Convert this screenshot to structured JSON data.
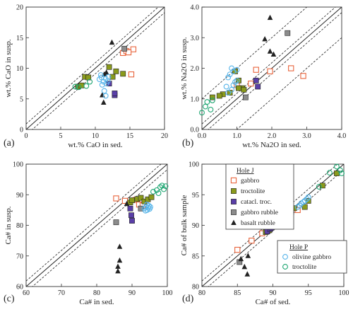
{
  "colors": {
    "gabbro": "#e8643c",
    "troctolite": "#8a9a1c",
    "catacl_troc": "#5a3fa8",
    "gabbro_rubble": "#8c8c8c",
    "basalt_rubble": "#222222",
    "olivine_gabbro": "#56b4e9",
    "troctolite_p": "#1ea672"
  },
  "panels": [
    {
      "label": "(a)"
    },
    {
      "label": "(b)"
    },
    {
      "label": "(c)"
    },
    {
      "label": "(d)"
    }
  ],
  "legend_j": {
    "title": "Hole J",
    "items": [
      "gabbro",
      "troctolite",
      "catacl. troc.",
      "gabbro rubble",
      "basalt rubble"
    ]
  },
  "legend_p": {
    "title": "Hole P",
    "items": [
      "olivine gabbro",
      "troctolite"
    ]
  },
  "chart_data": [
    {
      "type": "scatter",
      "xlabel": "wt.% CaO in sed.",
      "ylabel": "wt.% CaO in susp.",
      "xlim": [
        0,
        20
      ],
      "ylim": [
        0,
        20
      ],
      "xticks": [
        "0",
        "5",
        "10",
        "15",
        "20"
      ],
      "yticks": [
        "0",
        "5",
        "10",
        "15",
        "20"
      ],
      "reference_lines": "1:1 line with dashed bounds",
      "series": [
        {
          "name": "gabbro",
          "marker": "square-open",
          "points": [
            [
              14,
              12.5
            ],
            [
              14.5,
              12.8
            ],
            [
              15.5,
              13.1
            ],
            [
              14.8,
              12.6
            ],
            [
              15.2,
              9.0
            ]
          ]
        },
        {
          "name": "troctolite",
          "marker": "square-filled",
          "points": [
            [
              7.5,
              7.0
            ],
            [
              8.0,
              7.2
            ],
            [
              8.5,
              8.6
            ],
            [
              9.0,
              8.5
            ],
            [
              12.0,
              10.2
            ],
            [
              13.0,
              9.5
            ],
            [
              14.0,
              9.1
            ],
            [
              12.5,
              8.6
            ]
          ]
        },
        {
          "name": "catacl. troc.",
          "marker": "square-filled",
          "points": [
            [
              12.0,
              7.5
            ],
            [
              12.8,
              5.6
            ],
            [
              12.8,
              5.9
            ]
          ]
        },
        {
          "name": "gabbro rubble",
          "marker": "square-filled",
          "points": [
            [
              14.2,
              13.2
            ]
          ]
        },
        {
          "name": "basalt rubble",
          "marker": "triangle",
          "points": [
            [
              11.0,
              5.6
            ],
            [
              11.2,
              4.4
            ],
            [
              11.3,
              9.0
            ],
            [
              11.6,
              9.3
            ],
            [
              12.4,
              14.2
            ]
          ]
        },
        {
          "name": "olivine gabbro",
          "marker": "circle-open",
          "points": [
            [
              10.6,
              8.2
            ],
            [
              10.9,
              8.5
            ],
            [
              11.2,
              7.8
            ],
            [
              11.5,
              8.3
            ],
            [
              11.6,
              7.5
            ],
            [
              11.9,
              8.6
            ],
            [
              11.0,
              7.3
            ],
            [
              11.3,
              6.3
            ],
            [
              10.8,
              8.9
            ],
            [
              11.8,
              7.9
            ],
            [
              11.5,
              5.5
            ]
          ]
        },
        {
          "name": "troctolite",
          "marker": "circle-open",
          "points": [
            [
              7.1,
              7.0
            ],
            [
              7.6,
              6.9
            ],
            [
              8.7,
              7.1
            ],
            [
              9.2,
              7.8
            ]
          ]
        }
      ]
    },
    {
      "type": "scatter",
      "xlabel": "wt.% Na2O in sed.",
      "ylabel": "wt.% Na2O in susp.",
      "xlim": [
        0,
        4.0
      ],
      "ylim": [
        0,
        4.0
      ],
      "xticks": [
        "0.0",
        "1.0",
        "2.0",
        "3.0",
        "4.0"
      ],
      "yticks": [
        "0.0",
        "1.0",
        "2.0",
        "3.0",
        "4.0"
      ],
      "reference_lines": "1:1 line with dashed bounds",
      "series": [
        {
          "name": "gabbro",
          "marker": "square-open",
          "points": [
            [
              1.55,
              1.95
            ],
            [
              1.95,
              1.9
            ],
            [
              2.55,
              2.0
            ],
            [
              2.9,
              1.75
            ],
            [
              1.4,
              1.5
            ],
            [
              1.0,
              1.45
            ]
          ]
        },
        {
          "name": "troctolite",
          "marker": "square-filled",
          "points": [
            [
              0.6,
              1.15
            ],
            [
              0.3,
              1.05
            ],
            [
              0.5,
              1.1
            ],
            [
              0.8,
              1.2
            ],
            [
              1.15,
              1.35
            ],
            [
              1.2,
              1.3
            ],
            [
              1.05,
              1.6
            ],
            [
              0.95,
              1.9
            ],
            [
              1.05,
              1.35
            ]
          ]
        },
        {
          "name": "catacl. troc.",
          "marker": "square-filled",
          "points": [
            [
              1.6,
              1.4
            ],
            [
              1.55,
              1.6
            ]
          ]
        },
        {
          "name": "gabbro rubble",
          "marker": "square-filled",
          "points": [
            [
              2.45,
              3.15
            ],
            [
              1.25,
              1.05
            ]
          ]
        },
        {
          "name": "basalt rubble",
          "marker": "triangle",
          "points": [
            [
              1.95,
              3.65
            ],
            [
              1.95,
              2.55
            ],
            [
              2.05,
              2.45
            ],
            [
              1.8,
              2.95
            ]
          ]
        },
        {
          "name": "olivine gabbro",
          "marker": "circle-open",
          "points": [
            [
              0.7,
              1.4
            ],
            [
              0.75,
              1.7
            ],
            [
              0.8,
              1.8
            ],
            [
              0.85,
              2.0
            ],
            [
              0.9,
              1.9
            ],
            [
              0.95,
              1.55
            ],
            [
              0.75,
              1.2
            ],
            [
              0.85,
              1.3
            ],
            [
              0.9,
              1.45
            ],
            [
              1.0,
              1.6
            ],
            [
              1.0,
              1.95
            ]
          ]
        },
        {
          "name": "troctolite",
          "marker": "circle-open",
          "points": [
            [
              0.0,
              0.55
            ],
            [
              0.1,
              0.75
            ],
            [
              0.15,
              0.9
            ],
            [
              0.3,
              0.95
            ],
            [
              0.25,
              0.65
            ]
          ]
        }
      ]
    },
    {
      "type": "scatter",
      "xlabel": "Ca# in sed.",
      "ylabel": "Ca# in susp.",
      "xlim": [
        60,
        100
      ],
      "ylim": [
        60,
        100
      ],
      "xticks": [
        "60",
        "70",
        "80",
        "90",
        "100"
      ],
      "yticks": [
        "60",
        "70",
        "80",
        "90",
        "100"
      ],
      "reference_lines": "1:1 line with dashed bounds",
      "series": [
        {
          "name": "gabbro",
          "marker": "square-open",
          "points": [
            [
              85.5,
              88.8
            ],
            [
              88.0,
              88.0
            ],
            [
              91.0,
              88.3
            ],
            [
              92.0,
              86.8
            ],
            [
              93.0,
              86.5
            ]
          ]
        },
        {
          "name": "troctolite",
          "marker": "square-filled",
          "points": [
            [
              89.5,
              87.5
            ],
            [
              90.0,
              88.2
            ],
            [
              91.5,
              88.6
            ],
            [
              92.5,
              89.0
            ],
            [
              93.5,
              87.8
            ],
            [
              94.5,
              88.5
            ],
            [
              95.5,
              89.2
            ]
          ]
        },
        {
          "name": "catacl. troc.",
          "marker": "square-filled",
          "points": [
            [
              89.8,
              83.3
            ],
            [
              90.0,
              81.5
            ],
            [
              89.5,
              85.5
            ]
          ]
        },
        {
          "name": "gabbro rubble",
          "marker": "square-filled",
          "points": [
            [
              85.5,
              81.0
            ],
            [
              92.5,
              85.5
            ]
          ]
        },
        {
          "name": "basalt rubble",
          "marker": "triangle",
          "points": [
            [
              86.5,
              73.0
            ],
            [
              86.5,
              68.5
            ],
            [
              86.0,
              66.5
            ],
            [
              86.0,
              65.0
            ],
            [
              88.5,
              87.0
            ]
          ]
        },
        {
          "name": "olivine gabbro",
          "marker": "circle-open",
          "points": [
            [
              93.5,
              85.5
            ],
            [
              94.0,
              86.0
            ],
            [
              94.3,
              85.0
            ],
            [
              94.6,
              85.8
            ],
            [
              94.8,
              86.4
            ],
            [
              95.0,
              85.4
            ],
            [
              94.2,
              86.8
            ],
            [
              93.8,
              84.8
            ],
            [
              95.2,
              86.0
            ]
          ]
        },
        {
          "name": "troctolite",
          "marker": "circle-open",
          "points": [
            [
              96.0,
              91.0
            ],
            [
              97.0,
              91.5
            ],
            [
              98.0,
              92.5
            ],
            [
              98.5,
              93.0
            ],
            [
              99.0,
              91.8
            ],
            [
              99.5,
              92.8
            ],
            [
              97.5,
              90.5
            ]
          ]
        }
      ]
    },
    {
      "type": "scatter",
      "xlabel": "Ca# of sed.",
      "ylabel": "Ca# of bulk sample",
      "xlim": [
        80,
        100
      ],
      "ylim": [
        80,
        100
      ],
      "xticks": [
        "80",
        "85",
        "90",
        "95",
        "100"
      ],
      "yticks": [
        "80",
        "85",
        "90",
        "95",
        "100"
      ],
      "reference_lines": "1:1 line with dashed bounds",
      "series": [
        {
          "name": "gabbro",
          "marker": "square-open",
          "points": [
            [
              85.0,
              86.0
            ],
            [
              87.0,
              87.5
            ],
            [
              88.5,
              88.7
            ],
            [
              89.5,
              89.5
            ],
            [
              91.0,
              90.5
            ],
            [
              91.8,
              91.5
            ],
            [
              92.5,
              92.0
            ],
            [
              93.5,
              92.5
            ]
          ]
        },
        {
          "name": "troctolite",
          "marker": "square-filled",
          "points": [
            [
              89.0,
              88.9
            ],
            [
              89.5,
              89.2
            ],
            [
              90.0,
              89.8
            ],
            [
              90.5,
              90.3
            ],
            [
              92.5,
              92.5
            ],
            [
              93.0,
              92.8
            ],
            [
              95.0,
              94.0
            ],
            [
              97.0,
              96.5
            ],
            [
              99.0,
              98.5
            ],
            [
              94.5,
              93.0
            ]
          ]
        },
        {
          "name": "catacl. troc.",
          "marker": "square-filled",
          "points": [
            [
              89.2,
              89.0
            ],
            [
              89.6,
              89.4
            ],
            [
              89.8,
              89.6
            ]
          ]
        },
        {
          "name": "gabbro rubble",
          "marker": "square-filled",
          "points": [
            [
              85.3,
              84.0
            ],
            [
              92.6,
              92.2
            ]
          ]
        },
        {
          "name": "basalt rubble",
          "marker": "triangle",
          "points": [
            [
              86.5,
              85.0
            ],
            [
              86.0,
              83.2
            ],
            [
              86.4,
              82.0
            ],
            [
              85.5,
              84.5
            ]
          ]
        },
        {
          "name": "olivine gabbro",
          "marker": "circle-open",
          "points": [
            [
              93.5,
              93.0
            ],
            [
              94.0,
              93.6
            ],
            [
              94.5,
              94.0
            ],
            [
              94.8,
              94.3
            ],
            [
              95.0,
              94.6
            ],
            [
              93.8,
              93.2
            ],
            [
              94.3,
              93.8
            ]
          ]
        },
        {
          "name": "troctolite",
          "marker": "circle-open",
          "points": [
            [
              96.5,
              96.3
            ],
            [
              98.0,
              98.6
            ],
            [
              99.0,
              99.6
            ],
            [
              99.7,
              98.5
            ],
            [
              99.5,
              99.0
            ]
          ]
        }
      ]
    }
  ]
}
